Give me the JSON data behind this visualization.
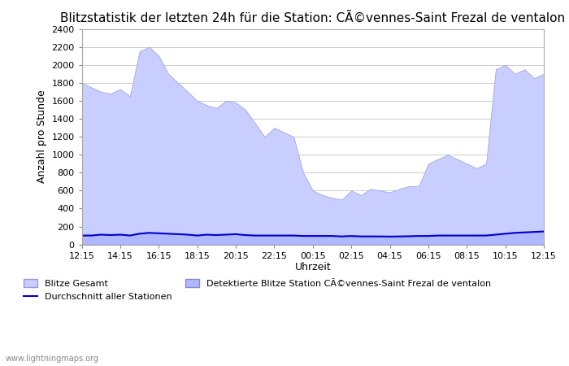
{
  "title": "Blitzstatistik der letzten 24h für die Station: CÃ©vennes-Saint Frezal de ventalon",
  "ylabel": "Anzahl pro Stunde",
  "xlabel": "Uhrzeit",
  "ylim": [
    0,
    2400
  ],
  "yticks": [
    0,
    200,
    400,
    600,
    800,
    1000,
    1200,
    1400,
    1600,
    1800,
    2000,
    2200,
    2400
  ],
  "xtick_labels": [
    "12:15",
    "14:15",
    "16:15",
    "18:15",
    "20:15",
    "22:15",
    "00:15",
    "02:15",
    "04:15",
    "06:15",
    "08:15",
    "10:15",
    "12:15"
  ],
  "color_gesamt_fill": "#c8ceff",
  "color_gesamt_edge": "#9999dd",
  "color_detektiert_fill": "#b0b8ff",
  "color_detektiert_edge": "#8888cc",
  "color_avg_line": "#0000cc",
  "background_color": "#ffffff",
  "grid_color": "#cccccc",
  "title_fontsize": 11,
  "axis_label_fontsize": 9,
  "tick_fontsize": 8,
  "legend_label_gesamt": "Blitze Gesamt",
  "legend_label_detektiert": "Detektierte Blitze Station CÃ©vennes-Saint Frezal de ventalon",
  "legend_label_avg": "Durchschnitt aller Stationen",
  "watermark": "www.lightningmaps.org",
  "x_values": [
    0,
    1,
    2,
    3,
    4,
    5,
    6,
    7,
    8,
    9,
    10,
    11,
    12,
    13,
    14,
    15,
    16,
    17,
    18,
    19,
    20,
    21,
    22,
    23,
    24,
    25,
    26,
    27,
    28,
    29,
    30,
    31,
    32,
    33,
    34,
    35,
    36,
    37,
    38,
    39,
    40,
    41,
    42,
    43,
    44,
    45,
    46,
    47,
    48
  ],
  "gesamt_values": [
    1800,
    1750,
    1700,
    1680,
    1730,
    1650,
    2150,
    2200,
    2100,
    1900,
    1800,
    1700,
    1600,
    1550,
    1520,
    1600,
    1580,
    1500,
    1350,
    1200,
    1300,
    1250,
    1200,
    800,
    600,
    550,
    520,
    500,
    600,
    550,
    620,
    600,
    580,
    620,
    650,
    650,
    900,
    950,
    1000,
    950,
    900,
    850,
    900,
    1950,
    2000,
    1900,
    1950,
    1850,
    1900
  ],
  "detektiert_values": [
    100,
    100,
    110,
    105,
    110,
    100,
    120,
    130,
    125,
    120,
    115,
    110,
    100,
    110,
    105,
    110,
    115,
    105,
    100,
    100,
    100,
    100,
    100,
    95,
    95,
    95,
    95,
    90,
    95,
    90,
    90,
    90,
    88,
    90,
    92,
    95,
    95,
    100,
    100,
    100,
    100,
    100,
    100,
    110,
    120,
    130,
    135,
    140,
    145
  ],
  "avg_line_values": [
    100,
    100,
    110,
    105,
    110,
    100,
    120,
    130,
    125,
    120,
    115,
    110,
    100,
    110,
    105,
    110,
    115,
    105,
    100,
    100,
    100,
    100,
    100,
    95,
    95,
    95,
    95,
    90,
    95,
    90,
    90,
    90,
    88,
    90,
    92,
    95,
    95,
    100,
    100,
    100,
    100,
    100,
    100,
    110,
    120,
    130,
    135,
    140,
    145
  ]
}
